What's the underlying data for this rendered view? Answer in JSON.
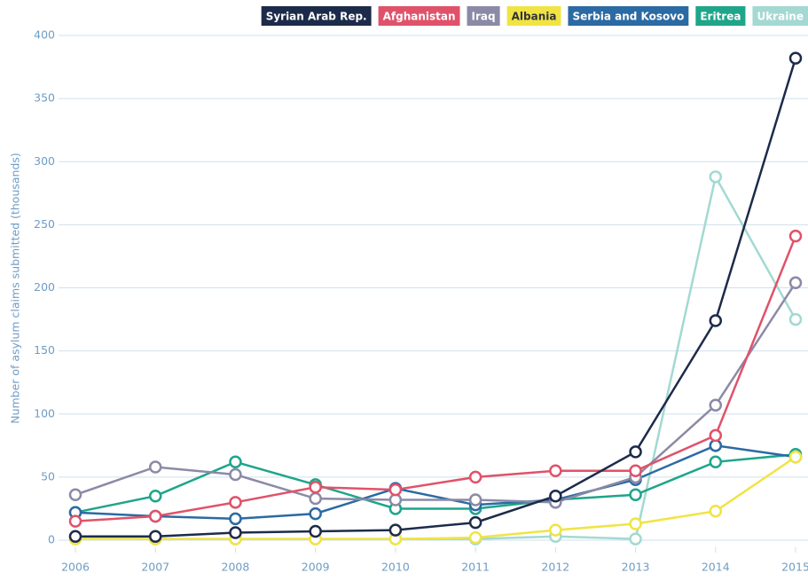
{
  "chart_data": {
    "type": "line",
    "y_label": "Number of asylum claims submitted (thousands)",
    "x": [
      2006,
      2007,
      2008,
      2009,
      2010,
      2011,
      2012,
      2013,
      2014,
      2015
    ],
    "xlim": [
      2006,
      2015
    ],
    "xticks": [
      2006,
      2007,
      2008,
      2009,
      2010,
      2011,
      2012,
      2013,
      2014,
      2015
    ],
    "ylim": [
      0,
      400
    ],
    "yticks": [
      0,
      50,
      100,
      150,
      200,
      250,
      300,
      350,
      400
    ],
    "grid": true,
    "legend": "top",
    "series": [
      {
        "name": "Syrian Arab Rep.",
        "color": "#1d2b4a",
        "values": [
          3,
          3,
          6,
          7,
          8,
          14,
          35,
          70,
          174,
          382
        ]
      },
      {
        "name": "Afghanistan",
        "color": "#e0526a",
        "values": [
          15,
          19,
          30,
          42,
          40,
          50,
          55,
          55,
          83,
          241
        ]
      },
      {
        "name": "Iraq",
        "color": "#8b8aa6",
        "values": [
          36,
          58,
          52,
          33,
          32,
          32,
          30,
          50,
          107,
          204
        ]
      },
      {
        "name": "Albania",
        "color": "#f0e444",
        "values": [
          1,
          1,
          1,
          1,
          1,
          2,
          8,
          13,
          23,
          66
        ]
      },
      {
        "name": "Serbia and Kosovo",
        "color": "#2b6aa3",
        "values": [
          22,
          19,
          17,
          21,
          41,
          28,
          32,
          48,
          75,
          66
        ]
      },
      {
        "name": "Eritrea",
        "color": "#1ea58a",
        "values": [
          22,
          35,
          62,
          44,
          25,
          25,
          32,
          36,
          62,
          68
        ]
      },
      {
        "name": "Ukraine",
        "color": "#a3d9d2",
        "values": [
          2,
          1,
          1,
          1,
          1,
          1,
          3,
          1,
          288,
          175
        ]
      }
    ]
  }
}
